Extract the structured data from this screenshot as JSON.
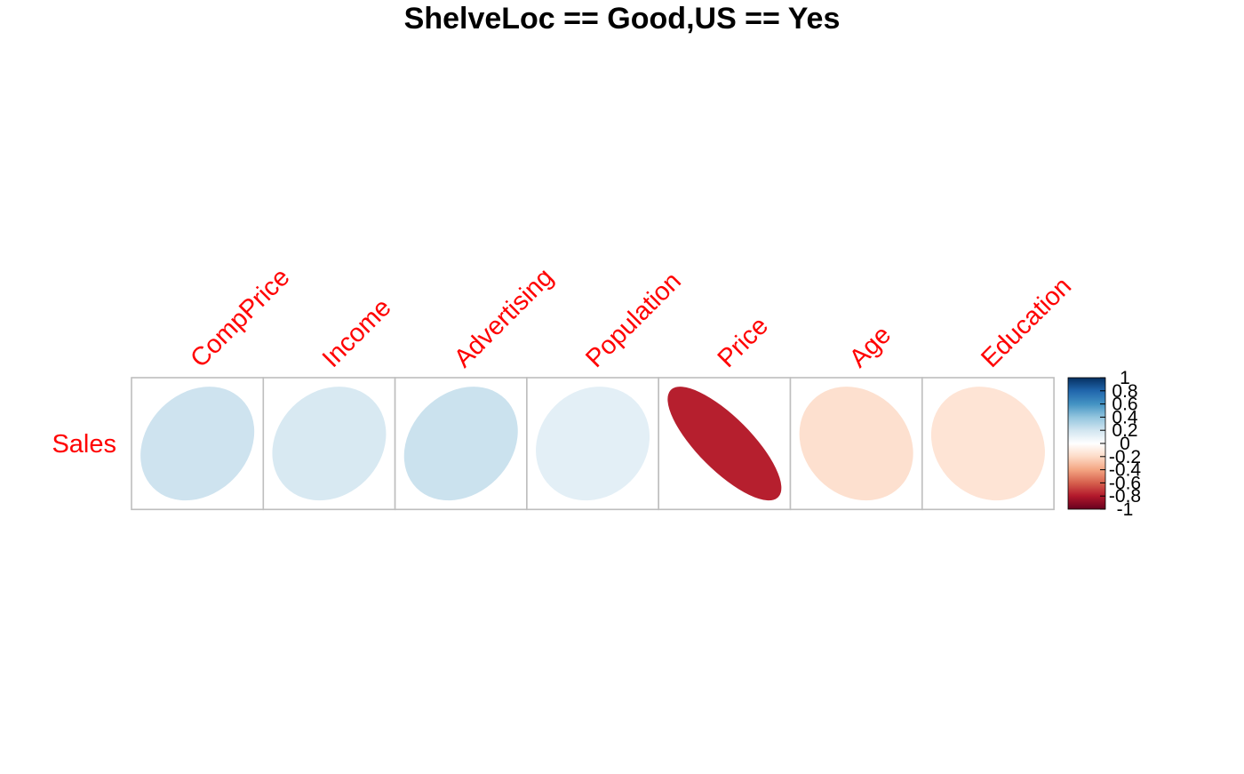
{
  "chart_data": {
    "type": "heatmap",
    "title": "ShelveLoc == Good,US == Yes",
    "row_labels": [
      "Sales"
    ],
    "col_labels": [
      "CompPrice",
      "Income",
      "Advertising",
      "Population",
      "Price",
      "Age",
      "Education"
    ],
    "values": [
      [
        0.21,
        0.17,
        0.22,
        0.12,
        -0.78,
        -0.17,
        -0.15
      ]
    ],
    "color_scale": {
      "min": -1,
      "max": 1,
      "stops": [
        "#67001F",
        "#B2182B",
        "#D6604D",
        "#F4A582",
        "#FDDBC7",
        "#FFFFFF",
        "#D1E5F0",
        "#92C5DE",
        "#4393C3",
        "#2166AC",
        "#053061"
      ]
    },
    "legend_ticks": [
      "1",
      "0.8",
      "0.6",
      "0.4",
      "0.2",
      "0",
      "-0.2",
      "-0.4",
      "-0.6",
      "-0.8",
      "-1"
    ],
    "label_color": "#FF0000",
    "grid_color": "#BEBEBE",
    "legend_placement": "right"
  }
}
